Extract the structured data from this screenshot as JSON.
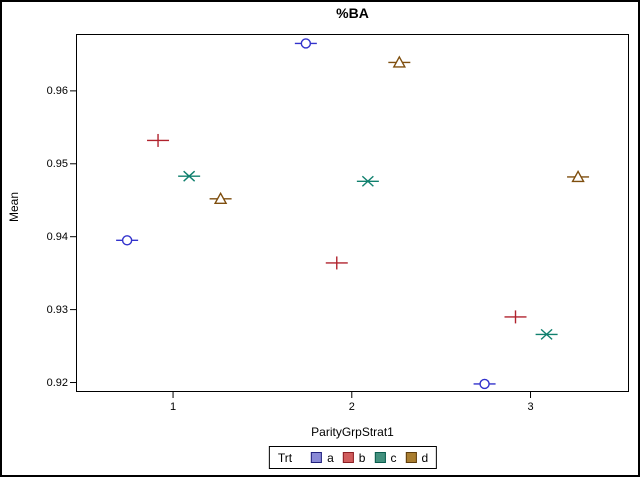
{
  "window": {
    "background": "#ffffff",
    "border_color": "#000000"
  },
  "chart_data": {
    "type": "scatter",
    "title": "%BA",
    "xlabel": "ParityGrpStrat1",
    "ylabel": "Mean",
    "x_categories": [
      "1",
      "2",
      "3"
    ],
    "y_ticks": [
      0.96,
      0.95,
      0.94,
      0.93,
      0.92
    ],
    "ylim": [
      0.9187,
      0.9678
    ],
    "xlim": [
      0.457,
      3.551
    ],
    "grid": false,
    "marker_line_halfwidth_px": 11,
    "legend": {
      "title": "Trt",
      "position": "bottom-center",
      "entries": [
        "a",
        "b",
        "c",
        "d"
      ]
    },
    "series": [
      {
        "name": "a",
        "symbol": "circle",
        "color": "#3232cc",
        "swatch_fill": "#8989d6",
        "swatch_border": "#22227d",
        "x": [
          1,
          2,
          3
        ],
        "x_offset": -0.257,
        "values": [
          0.9395,
          0.9665,
          0.9198
        ]
      },
      {
        "name": "b",
        "symbol": "plus",
        "color": "#b0222d",
        "swatch_fill": "#d05c5c",
        "swatch_border": "#8c1f24",
        "x": [
          1,
          2,
          3
        ],
        "x_offset": -0.084,
        "values": [
          0.9532,
          0.9364,
          0.929
        ]
      },
      {
        "name": "c",
        "symbol": "x-star",
        "color": "#10806e",
        "swatch_fill": "#43917e",
        "swatch_border": "#0b5d4e",
        "x": [
          1,
          2,
          3
        ],
        "x_offset": 0.09,
        "values": [
          0.9483,
          0.9476,
          0.9266
        ]
      },
      {
        "name": "d",
        "symbol": "triangle",
        "color": "#7e4e0e",
        "swatch_fill": "#a97d2f",
        "swatch_border": "#5e3d0d",
        "x": [
          1,
          2,
          3
        ],
        "x_offset": 0.266,
        "values": [
          0.9452,
          0.9639,
          0.9482
        ]
      }
    ]
  }
}
